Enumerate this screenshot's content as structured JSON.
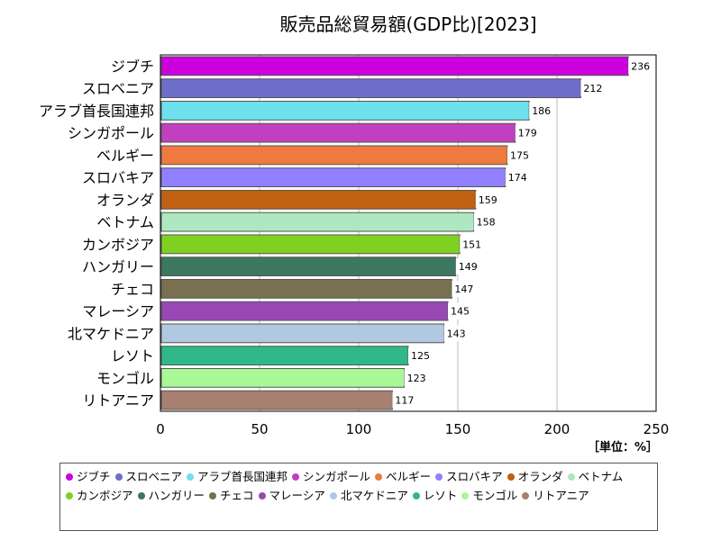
{
  "chart_data": {
    "type": "bar",
    "orientation": "horizontal",
    "title": "販売品総貿易額(GDP比)[2023]",
    "categories": [
      "ジブチ",
      "スロベニア",
      "アラブ首長国連邦",
      "シンガポール",
      "ベルギー",
      "スロバキア",
      "オランダ",
      "ベトナム",
      "カンボジア",
      "ハンガリー",
      "チェコ",
      "マレーシア",
      "北マケドニア",
      "レソト",
      "モンゴル",
      "リトアニア"
    ],
    "values": [
      236,
      212,
      186,
      179,
      175,
      174,
      159,
      158,
      151,
      149,
      147,
      145,
      143,
      125,
      123,
      117
    ],
    "colors": [
      "#cc00dd",
      "#6e6ec8",
      "#6ee0ee",
      "#c040c0",
      "#ee7a40",
      "#9080ff",
      "#c06010",
      "#aee8c0",
      "#80d020",
      "#3c7860",
      "#787050",
      "#9848b4",
      "#b0c8e0",
      "#30b888",
      "#a8f898",
      "#a88070"
    ],
    "xlim": [
      0,
      250
    ],
    "xticks": [
      0,
      50,
      100,
      150,
      200,
      250
    ],
    "unit_label": "［単位：%］",
    "grid": true,
    "legend_position": "bottom"
  }
}
